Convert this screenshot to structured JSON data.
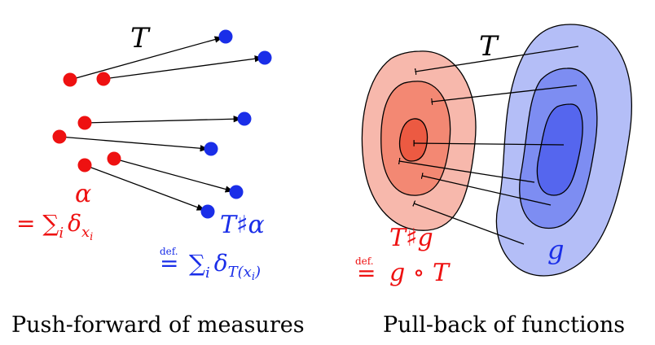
{
  "left_panel": {
    "map_symbol": "T",
    "source_label": "α",
    "source_def_prefix": "= ",
    "source_def_sum": "∑",
    "source_def_sub_i": "i",
    "source_def_delta": "δ",
    "source_def_sub_x": "x",
    "source_def_sub_xi": "i",
    "target_label": "T♯α",
    "target_def_prefix": "def.",
    "target_def_sum": "∑",
    "target_def_sub_i": "i",
    "target_def_delta": "δ",
    "target_def_sub": "T(x",
    "target_def_sub_xi": "i",
    "target_def_close": ")",
    "caption": "Push-forward of measures",
    "source_color": "#ee1111",
    "target_color": "#1a2ee8"
  },
  "right_panel": {
    "map_symbol": "T",
    "source_label": "T♯g",
    "source_def_prefix": "def.",
    "source_def_expr": "g ∘ T",
    "target_label": "g",
    "caption": "Pull-back of functions",
    "source_color": "#ee1111",
    "target_color": "#1a2ee8"
  }
}
